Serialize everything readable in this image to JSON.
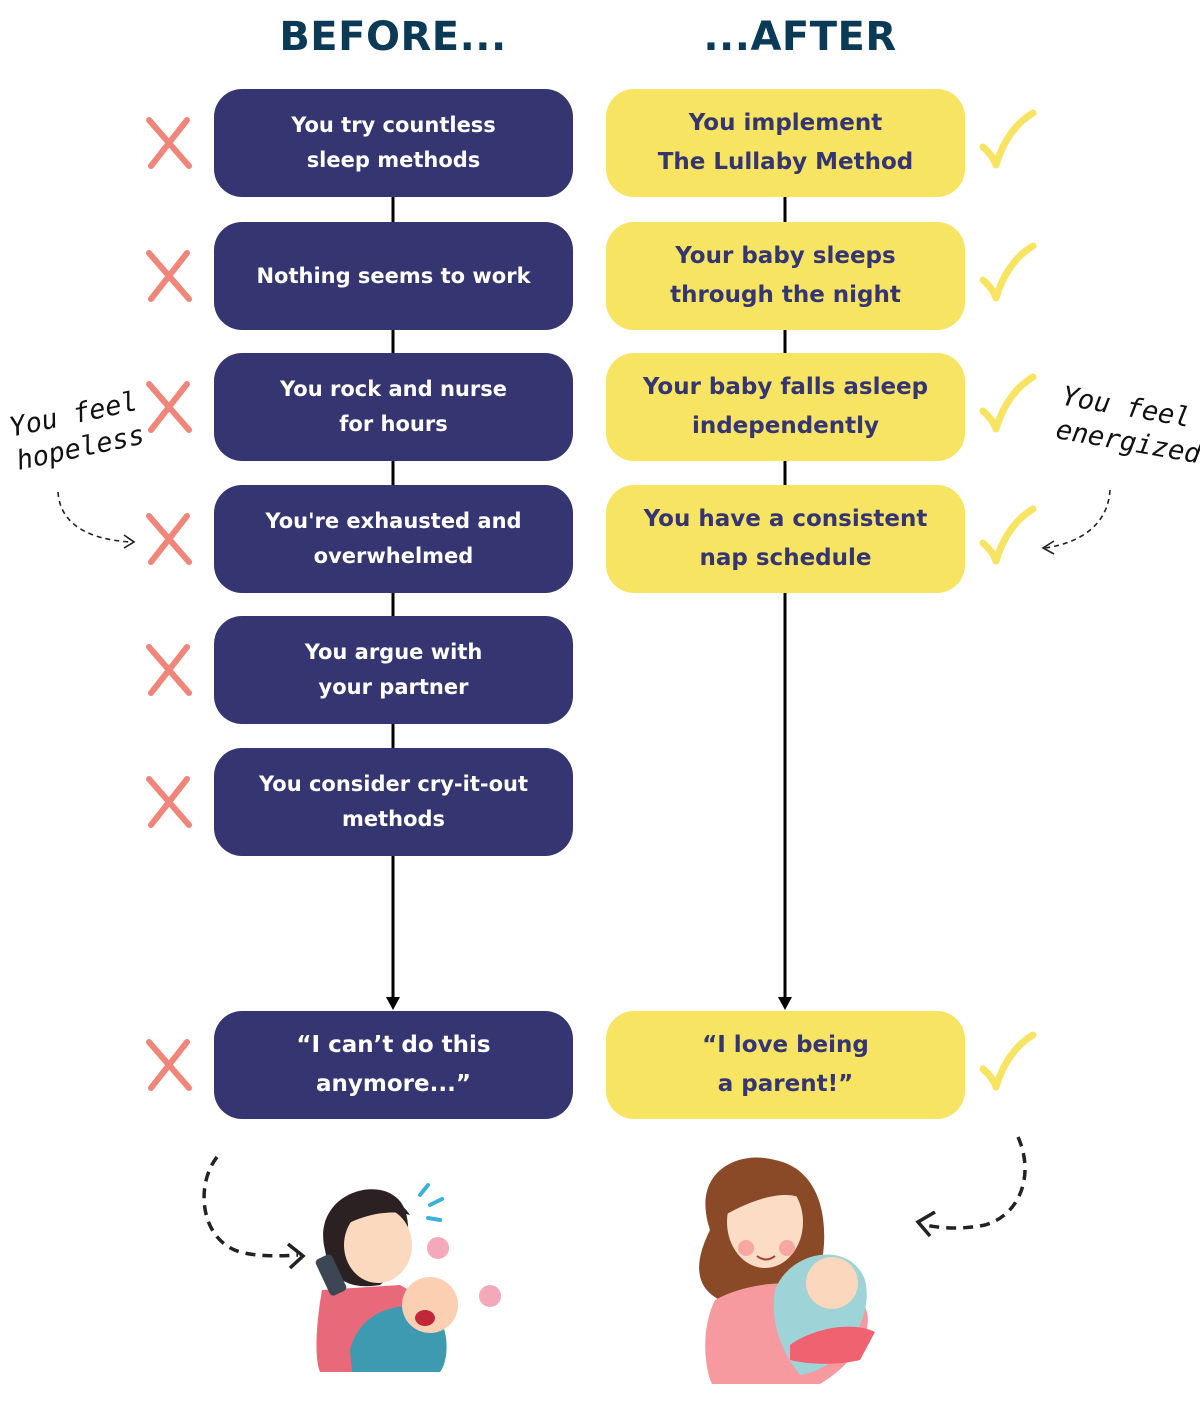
{
  "before": {
    "title": "BEFORE...",
    "steps": [
      "You try countless\nsleep methods",
      "Nothing seems to work",
      "You rock and nurse\nfor hours",
      "You're exhausted and\noverwhelmed",
      "You argue with\nyour partner",
      "You consider cry-it-out\nmethods"
    ],
    "final": "“I can’t do this\nanymore...”",
    "note": "You feel\nhopeless",
    "mark_icon": "cross-icon",
    "mark_color": "#f0857a"
  },
  "after": {
    "title": "...AFTER",
    "steps": [
      "You implement\nThe Lullaby Method",
      "Your baby sleeps\nthrough the night",
      "Your baby falls asleep\nindependently",
      "You have a consistent\nnap schedule"
    ],
    "final": "“I love being\na parent!”",
    "note": "You feel\nenergized",
    "mark_icon": "check-icon",
    "mark_color": "#f7e463"
  },
  "colors": {
    "navy": "#343571",
    "yellow": "#f7e463",
    "title": "#0b3a57"
  }
}
